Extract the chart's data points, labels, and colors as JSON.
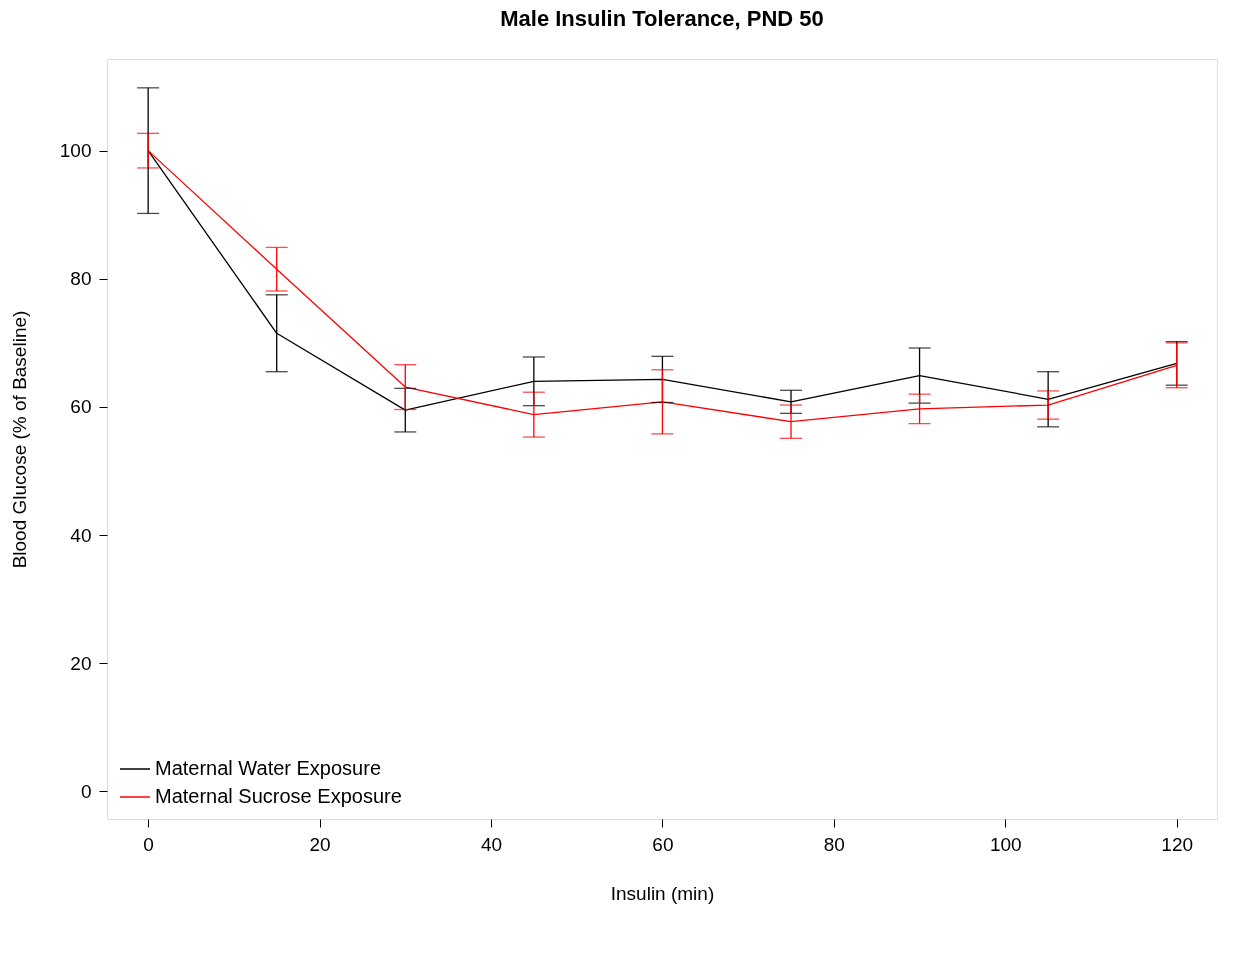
{
  "chart_data": {
    "type": "line",
    "title": "Male Insulin Tolerance, PND 50",
    "xlabel": "Insulin (min)",
    "ylabel": "Blood Glucose (% of Baseline)",
    "x": [
      0,
      15,
      30,
      45,
      60,
      75,
      90,
      105,
      120
    ],
    "series": [
      {
        "name": "Maternal Water Exposure",
        "color": "#000000",
        "values": [
          100,
          71.5,
          59.5,
          64,
          64.3,
          60.8,
          64.9,
          61.2,
          66.8
        ],
        "errors": [
          9.8,
          6,
          3.4,
          3.8,
          3.6,
          1.8,
          4.3,
          4.3,
          3.4
        ]
      },
      {
        "name": "Maternal Sucrose Exposure",
        "color": "#ff0000",
        "values": [
          100,
          81.5,
          63.1,
          58.8,
          60.8,
          57.7,
          59.7,
          60.3,
          66.5
        ],
        "errors": [
          2.7,
          3.4,
          3.5,
          3.5,
          5,
          2.6,
          2.3,
          2.2,
          3.5
        ]
      }
    ],
    "xlim": [
      -4.8,
      124.7
    ],
    "ylim": [
      -4.3,
      114.3
    ],
    "xticks": [
      0,
      20,
      40,
      60,
      80,
      100,
      120
    ],
    "yticks": [
      0,
      20,
      40,
      60,
      80,
      100
    ],
    "grid": false,
    "legend": "bottom left",
    "marker": "none",
    "line_style": "solid"
  }
}
